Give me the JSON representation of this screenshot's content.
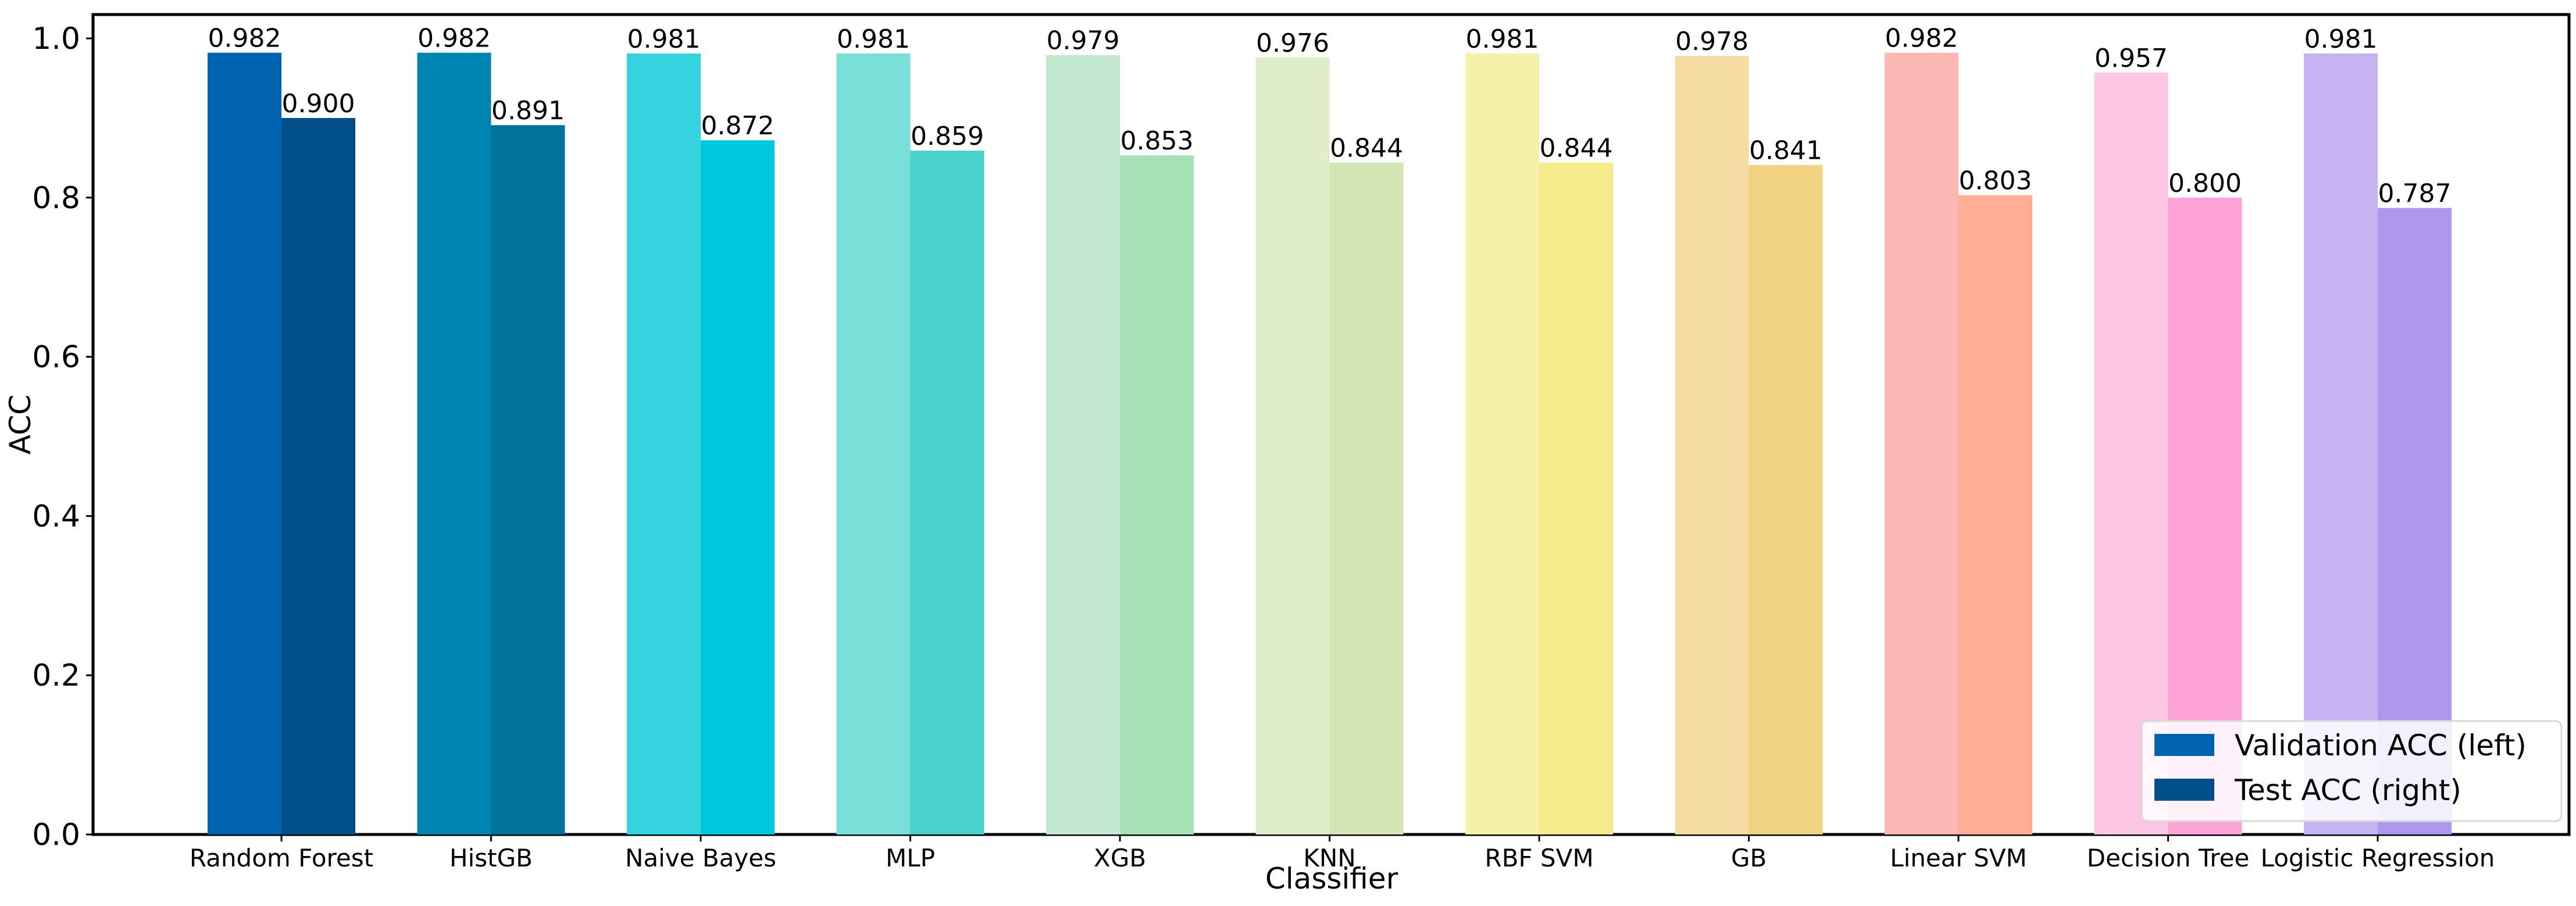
{
  "chart_data": {
    "type": "bar",
    "xlabel": "Classifier",
    "ylabel": "ACC",
    "ylim": [
      0,
      1.0
    ],
    "yticks": [
      "0.0",
      "0.2",
      "0.4",
      "0.6",
      "0.8",
      "1.0"
    ],
    "grid": false,
    "legend_position": "bottom-right",
    "categories": [
      "Random Forest",
      "HistGB",
      "Naive Bayes",
      "MLP",
      "XGB",
      "KNN",
      "RBF SVM",
      "GB",
      "Linear SVM",
      "Decision Tree",
      "Logistic Regression"
    ],
    "series": [
      {
        "name": "Validation ACC (left)",
        "values": [
          0.982,
          0.982,
          0.981,
          0.981,
          0.979,
          0.976,
          0.981,
          0.978,
          0.982,
          0.957,
          0.981
        ],
        "labels": [
          "0.982",
          "0.982",
          "0.981",
          "0.981",
          "0.979",
          "0.976",
          "0.981",
          "0.978",
          "0.982",
          "0.957",
          "0.981"
        ],
        "colors": [
          "#0063b1",
          "#0085b3",
          "#35d2e0",
          "#7adfd8",
          "#c3ead0",
          "#dfedc9",
          "#f6f1aa",
          "#f4dca2",
          "#fdb8b5",
          "#fdc6e4",
          "#c6b3f2"
        ]
      },
      {
        "name": "Test ACC (right)",
        "values": [
          0.9,
          0.891,
          0.872,
          0.859,
          0.853,
          0.844,
          0.844,
          0.841,
          0.803,
          0.8,
          0.787
        ],
        "labels": [
          "0.900",
          "0.891",
          "0.872",
          "0.859",
          "0.853",
          "0.844",
          "0.844",
          "0.841",
          "0.803",
          "0.800",
          "0.787"
        ],
        "colors": [
          "#004f88",
          "#00739c",
          "#00c8dc",
          "#47d3cb",
          "#a9e1b7",
          "#d3e6b3",
          "#f5eb8d",
          "#f0d283",
          "#fdae93",
          "#fda3d6",
          "#ae95ee"
        ]
      }
    ],
    "legend_colors": [
      "#0063b1",
      "#004f88"
    ]
  }
}
